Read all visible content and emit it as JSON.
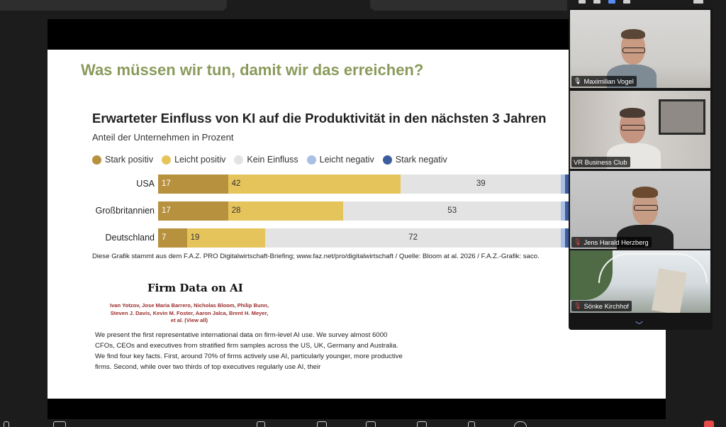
{
  "slide": {
    "title": "Was müssen wir tun, damit wir das erreichen?"
  },
  "chart_data": {
    "type": "bar",
    "title": "Erwarteter Einfluss von KI auf die Produktivität in den nächsten 3 Jahren",
    "subtitle": "Anteil der Unternehmen in Prozent",
    "categories": [
      "USA",
      "Großbritannien",
      "Deutschland"
    ],
    "series": [
      {
        "name": "Stark positiv",
        "color": "#b8913f",
        "values": [
          17,
          17,
          7
        ]
      },
      {
        "name": "Leicht positiv",
        "color": "#e6c45c",
        "values": [
          42,
          28,
          19
        ]
      },
      {
        "name": "Kein Einfluss",
        "color": "#e3e3e3",
        "values": [
          39,
          53,
          72
        ]
      },
      {
        "name": "Leicht negativ",
        "color": "#a9c0e4",
        "values": [
          1,
          1,
          1
        ]
      },
      {
        "name": "Stark negativ",
        "color": "#3e5d9f",
        "values": [
          1,
          1,
          1
        ]
      }
    ],
    "stacked": true,
    "xlim": [
      0,
      100
    ],
    "legend": "top-left",
    "source": "Diese Grafik stammt aus dem F.A.Z. PRO Digitalwirtschaft-Briefing; www.faz.net/pro/digitalwirtschaft / Quelle: Bloom at al. 2026 / F.A.Z.-Grafik: saco."
  },
  "paper": {
    "title": "Firm Data on AI",
    "authors": "Ivan Yotzov, Jose Maria Barrero, Nicholas Bloom, Philip Bunn, Steven J. Davis, Kevin M. Foster, Aaron Jalca, Brent H. Meyer, et al. (View all)",
    "abstract": "We present the first representative international data on firm-level AI use. We survey almost 6000 CFOs, CEOs and executives from stratified firm samples across the US, UK, Germany and Australia. We find four key facts. First, around 70% of firms actively use AI, particularly younger, more productive firms. Second, while over two thirds of top executives regularly use AI, their"
  },
  "participants": [
    {
      "name": "Maximilian Vogel",
      "mic": "on",
      "active": true
    },
    {
      "name": "VR Business Club",
      "mic": "none",
      "active": false
    },
    {
      "name": "Jens Harald Herzberg",
      "mic": "muted",
      "active": false
    },
    {
      "name": "Sönke Kirchhof",
      "mic": "muted",
      "active": false
    }
  ],
  "icons": {
    "mic_muted": "mic-muted-icon",
    "mic_on": "mic-icon",
    "chevron_down": "chevron-down-icon"
  }
}
